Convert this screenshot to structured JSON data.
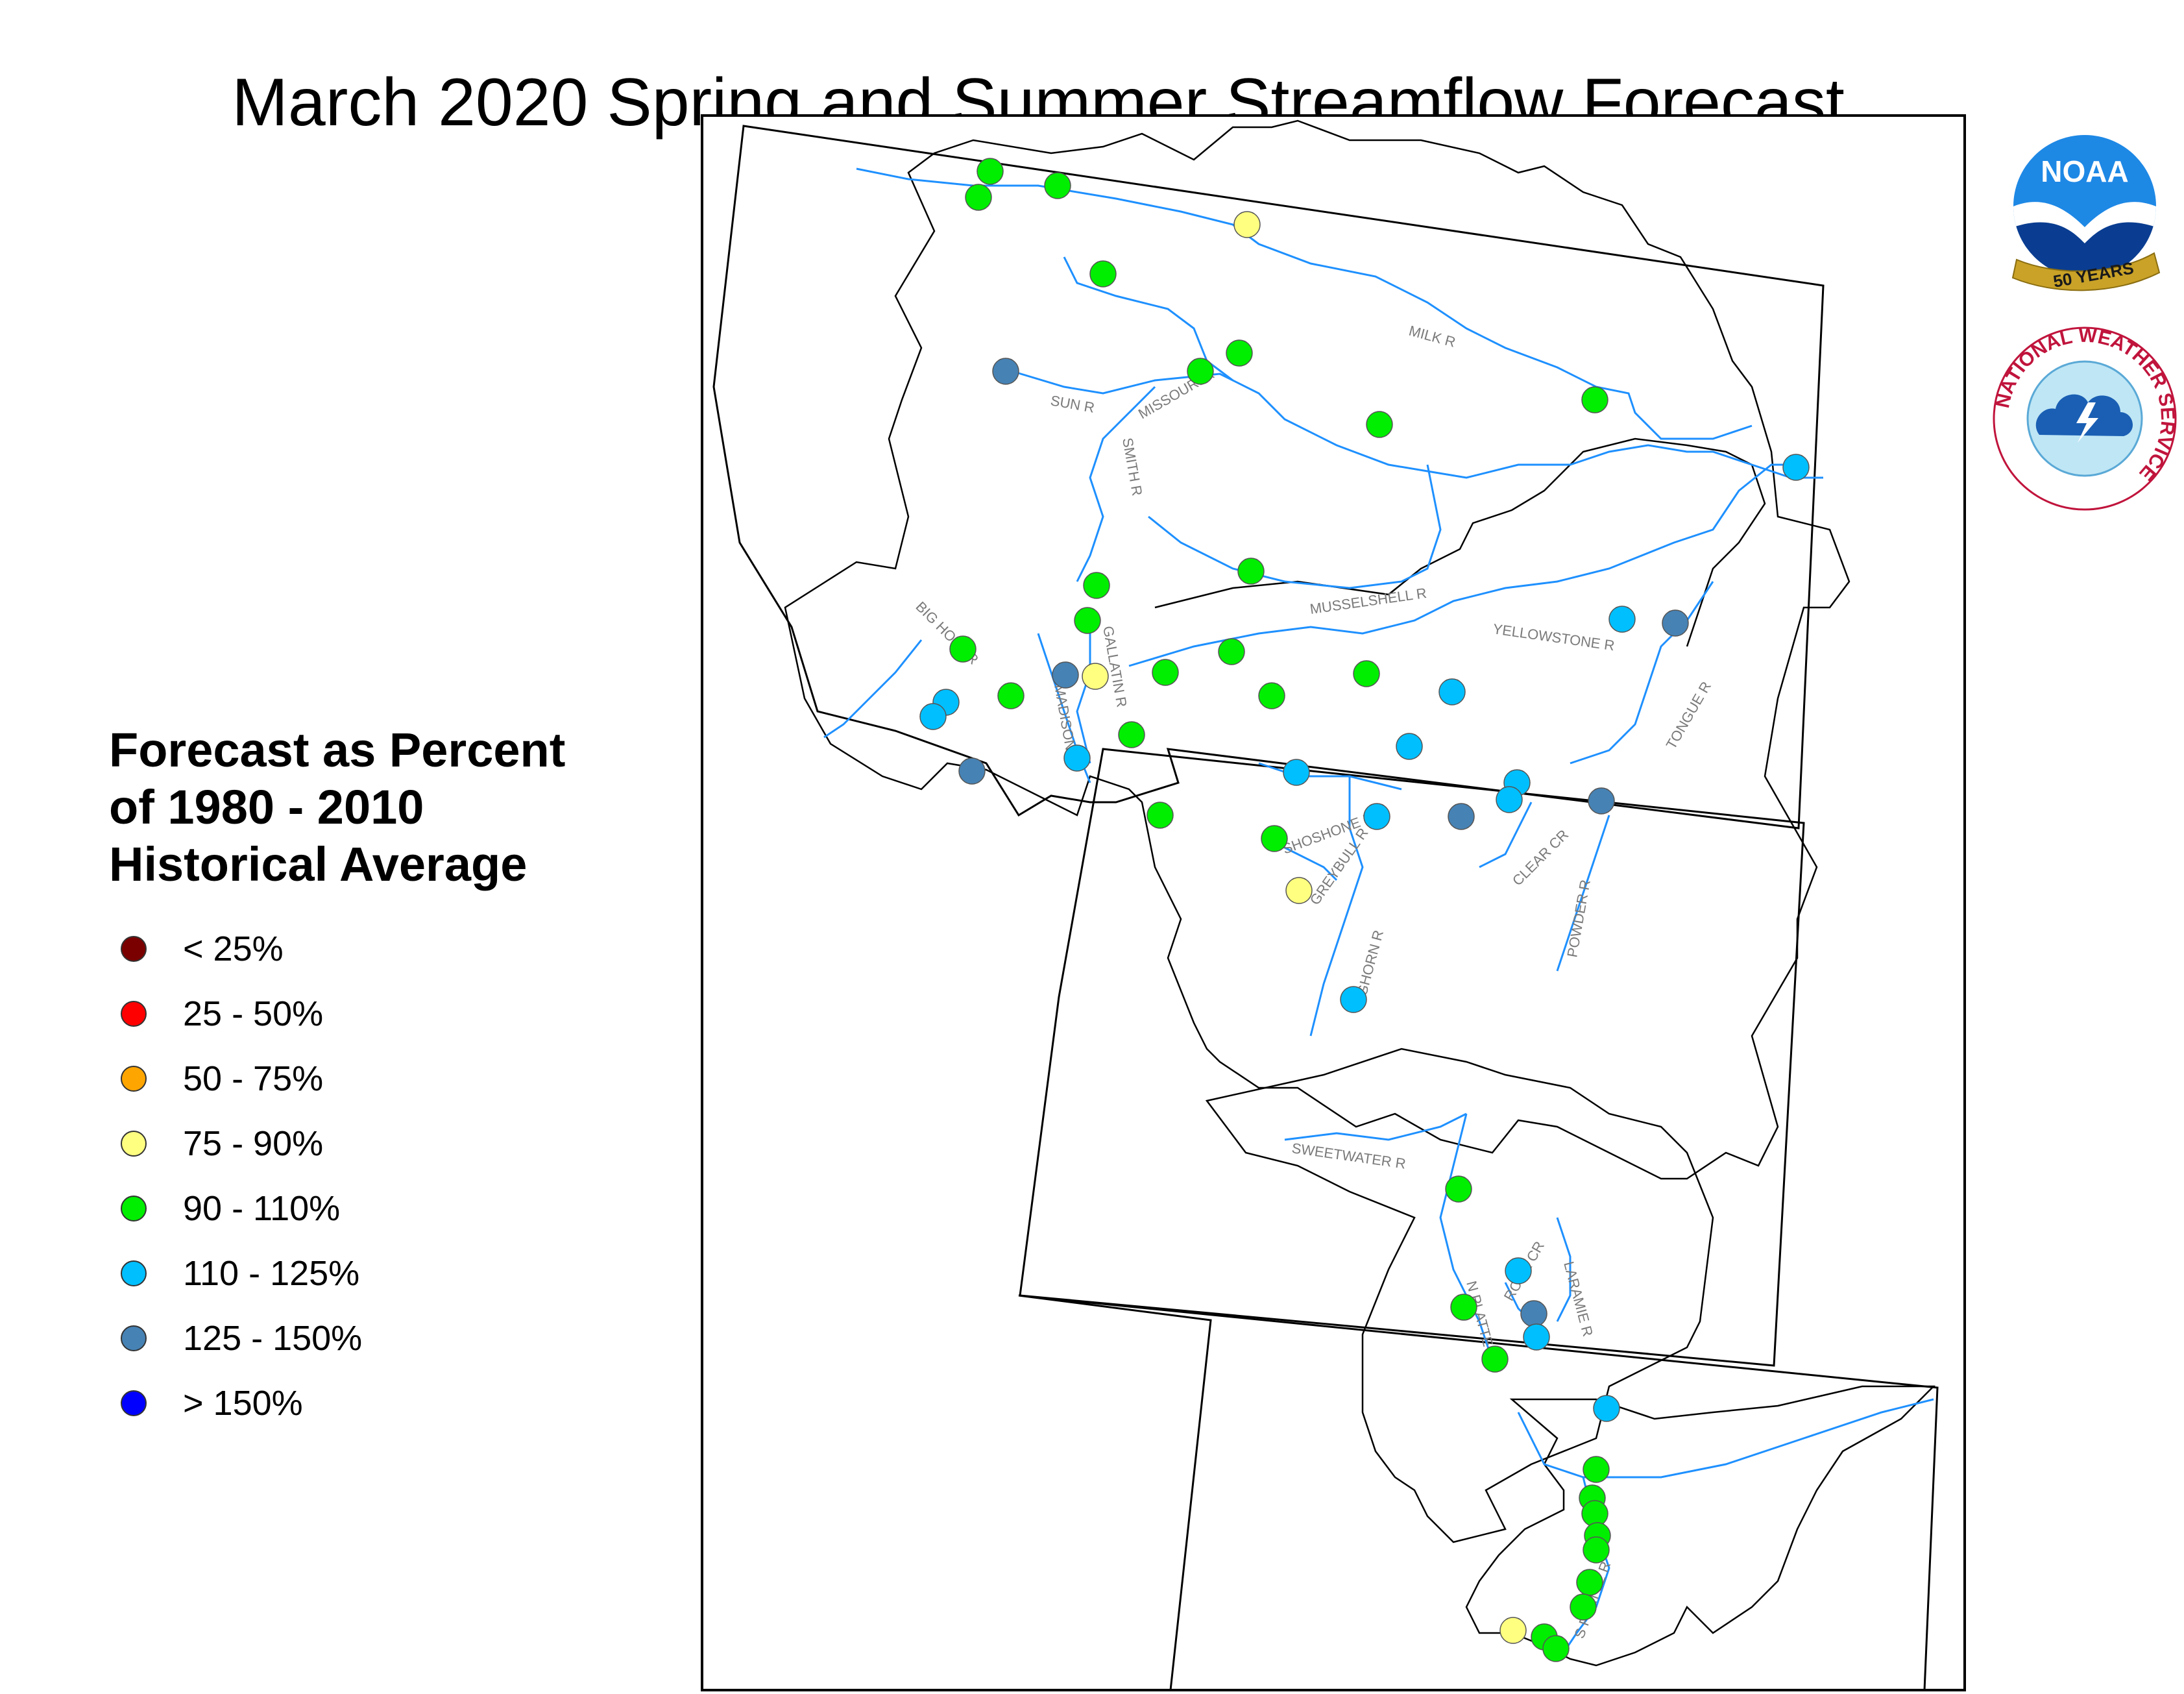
{
  "title": "March 2020 Spring and Summer Streamflow Forecast",
  "legend": {
    "title_lines": [
      "Forecast as Percent",
      "of 1980 - 2010",
      "Historical Average"
    ],
    "items": [
      {
        "label": "< 25%",
        "color": "#7a0000"
      },
      {
        "label": "25 - 50%",
        "color": "#ff0000"
      },
      {
        "label": "50 - 75%",
        "color": "#ffa500"
      },
      {
        "label": "75 - 90%",
        "color": "#ffff80"
      },
      {
        "label": "90 - 110%",
        "color": "#00ee00"
      },
      {
        "label": "110 - 125%",
        "color": "#00bfff"
      },
      {
        "label": "125 - 150%",
        "color": "#4682b4"
      },
      {
        "label": "> 150%",
        "color": "#0000ff"
      }
    ]
  },
  "river_labels": [
    "MILK R",
    "SUN R",
    "MISSOURI R",
    "SMITH R",
    "MUSSELSHELL R",
    "BIG HOLE R",
    "GALLATIN R",
    "MADISON R",
    "YELLOWSTONE R",
    "TONGUE R",
    "SHOSHONE R",
    "GREYBULL R",
    "BIGHORN R",
    "CLEAR CR",
    "POWDER R",
    "SWEETWATER R",
    "ROCK CR",
    "LARAMIE R",
    "N PLATTE R",
    "S PLATTE R"
  ],
  "logos": {
    "noaa": {
      "icon": "noaa-50-years-logo",
      "text": "NOAA",
      "ribbon": "50 YEARS"
    },
    "nws": {
      "icon": "national-weather-service-logo",
      "text": "NATIONAL WEATHER SERVICE"
    }
  },
  "colors": {
    "river": "#1e90ff",
    "border": "#000000",
    "frame": "#000000"
  }
}
